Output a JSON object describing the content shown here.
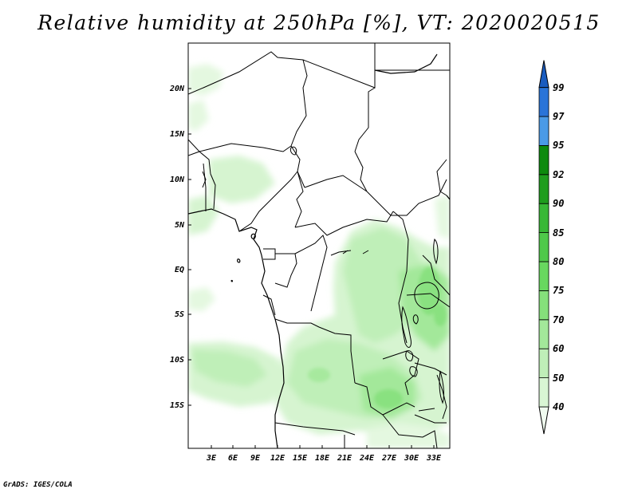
{
  "title": "Relative humidity at 250hPa [%], VT: 2020020515",
  "credit": "GrADS: IGES/COLA",
  "lat_labels": [
    "20N",
    "15N",
    "10N",
    "5N",
    "EQ",
    "5S",
    "10S",
    "15S"
  ],
  "lon_labels": [
    "3E",
    "6E",
    "9E",
    "12E",
    "15E",
    "18E",
    "21E",
    "24E",
    "27E",
    "30E",
    "33E"
  ],
  "colorbar": {
    "levels": [
      "40",
      "50",
      "60",
      "70",
      "75",
      "80",
      "85",
      "90",
      "92",
      "95",
      "97",
      "99"
    ],
    "colors": [
      "#f0fbef",
      "#d9f6d4",
      "#bfefb8",
      "#a3e89a",
      "#85e07b",
      "#68d85f",
      "#4fc94a",
      "#38b836",
      "#1f9d1e",
      "#0d8a0e",
      "#4a9ae6",
      "#2a74d8",
      "#1a5cbf"
    ]
  }
}
